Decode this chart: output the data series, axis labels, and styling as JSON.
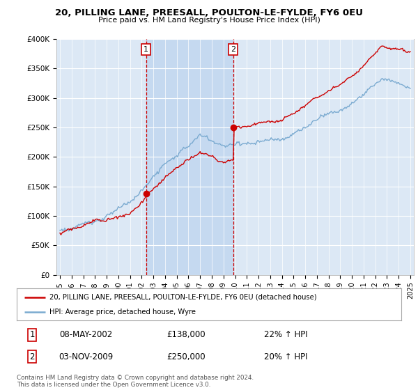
{
  "title1": "20, PILLING LANE, PREESALL, POULTON-LE-FYLDE, FY6 0EU",
  "title2": "Price paid vs. HM Land Registry's House Price Index (HPI)",
  "legend_line1": "20, PILLING LANE, PREESALL, POULTON-LE-FYLDE, FY6 0EU (detached house)",
  "legend_line2": "HPI: Average price, detached house, Wyre",
  "table_rows": [
    {
      "num": "1",
      "date": "08-MAY-2002",
      "price": "£138,000",
      "hpi": "22% ↑ HPI"
    },
    {
      "num": "2",
      "date": "03-NOV-2009",
      "price": "£250,000",
      "hpi": "20% ↑ HPI"
    }
  ],
  "footer": "Contains HM Land Registry data © Crown copyright and database right 2024.\nThis data is licensed under the Open Government Licence v3.0.",
  "marker1_year": 2002.37,
  "marker1_value": 138000,
  "marker2_year": 2009.84,
  "marker2_value": 250000,
  "ylim": [
    0,
    400000
  ],
  "xlim_start": 1994.7,
  "xlim_end": 2025.3,
  "hpi_color": "#7aaad0",
  "price_color": "#cc0000",
  "background_color": "#ffffff",
  "plot_bg_color": "#dce8f5",
  "highlight_color": "#c5d9f0"
}
